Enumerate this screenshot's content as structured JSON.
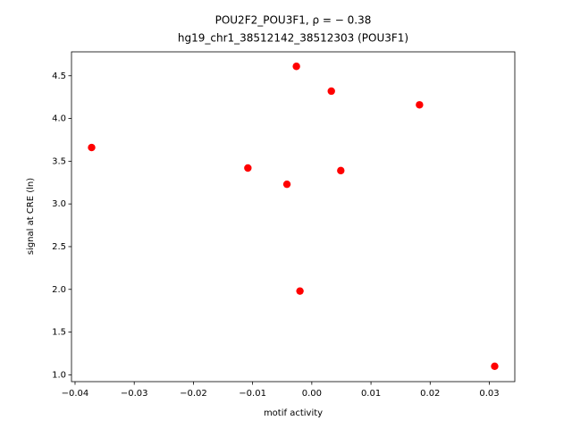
{
  "chart_data": {
    "type": "scatter",
    "title": "POU2F2_POU3F1, ρ = − 0.38",
    "subtitle": "hg19_chr1_38512142_38512303 (POU3F1)",
    "x_label": "motif activity",
    "y_label": "signal at CRE (ln)",
    "color": "#ff0000",
    "x": [
      -0.0372,
      -0.0108,
      -0.0042,
      -0.0026,
      -0.002,
      0.0033,
      0.0049,
      0.0182,
      0.0309
    ],
    "values": [
      3.66,
      3.42,
      3.23,
      4.61,
      1.98,
      4.32,
      3.39,
      4.16,
      1.1
    ],
    "xlim": [
      -0.0406,
      0.0343
    ],
    "ylim": [
      0.92,
      4.78
    ],
    "xticks": [
      {
        "value": -0.04,
        "label": "−0.04"
      },
      {
        "value": -0.03,
        "label": "−0.03"
      },
      {
        "value": -0.02,
        "label": "−0.02"
      },
      {
        "value": -0.01,
        "label": "−0.01"
      },
      {
        "value": 0,
        "label": "0.00"
      },
      0.01,
      0.02,
      0.03
    ],
    "yticks": [
      {
        "value": 1,
        "label": "1.0"
      },
      1.5,
      {
        "value": 2,
        "label": "2.0"
      },
      2.5,
      {
        "value": 3,
        "label": "3.0"
      },
      3.5,
      {
        "value": 4,
        "label": "4.0"
      },
      4.5
    ]
  }
}
